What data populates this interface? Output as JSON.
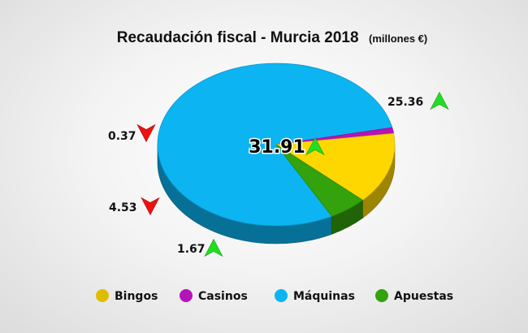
{
  "chart_data": {
    "type": "pie",
    "title": "Recaudación fiscal  -  Murcia 2018",
    "units": "(millones €)",
    "total": {
      "value": "31.91",
      "trend": "up"
    },
    "slices": [
      {
        "name": "Máquinas",
        "value": 25.36,
        "label": "25.36",
        "trend": "up",
        "color": "#0cb4f2"
      },
      {
        "name": "Casinos",
        "value": 0.37,
        "label": "0.37",
        "trend": "down",
        "color": "#b414b8"
      },
      {
        "name": "Bingos",
        "value": 4.53,
        "label": "4.53",
        "trend": "down",
        "color": "#ffd700"
      },
      {
        "name": "Apuestas",
        "value": 1.67,
        "label": "1.67",
        "trend": "up",
        "color": "#33a20c"
      }
    ],
    "legend": [
      "Bingos",
      "Casinos",
      "Máquinas",
      "Apuestas"
    ],
    "legend_colors": [
      "#e0bc00",
      "#b414b8",
      "#0cb4f2",
      "#33a20c"
    ],
    "trend_colors": {
      "up": "#22dd22",
      "down": "#ee1111"
    }
  }
}
